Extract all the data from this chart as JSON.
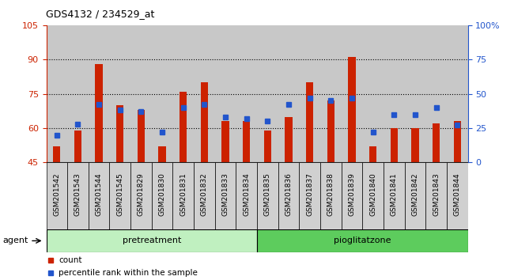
{
  "title": "GDS4132 / 234529_at",
  "samples": [
    "GSM201542",
    "GSM201543",
    "GSM201544",
    "GSM201545",
    "GSM201829",
    "GSM201830",
    "GSM201831",
    "GSM201832",
    "GSM201833",
    "GSM201834",
    "GSM201835",
    "GSM201836",
    "GSM201837",
    "GSM201838",
    "GSM201839",
    "GSM201840",
    "GSM201841",
    "GSM201842",
    "GSM201843",
    "GSM201844"
  ],
  "count_values": [
    52,
    59,
    88,
    70,
    68,
    52,
    76,
    80,
    63,
    63,
    59,
    65,
    80,
    72,
    91,
    52,
    60,
    60,
    62,
    63
  ],
  "percentile_values": [
    20,
    28,
    42,
    38,
    37,
    22,
    40,
    42,
    33,
    32,
    30,
    42,
    47,
    45,
    47,
    22,
    35,
    35,
    40,
    27
  ],
  "groups": [
    {
      "label": "pretreatment",
      "start": 0,
      "end": 10,
      "color": "#c0f0c0"
    },
    {
      "label": "pioglitatzone",
      "start": 10,
      "end": 20,
      "color": "#5dcc5d"
    }
  ],
  "ylim_left": [
    45,
    105
  ],
  "ylim_right": [
    0,
    100
  ],
  "yticks_left": [
    45,
    60,
    75,
    90,
    105
  ],
  "yticks_right": [
    0,
    25,
    50,
    75,
    100
  ],
  "ytick_labels_right": [
    "0",
    "25",
    "50",
    "75",
    "100%"
  ],
  "bar_color": "#cc2200",
  "percentile_color": "#2255cc",
  "bg_color": "#c8c8c8",
  "cell_color": "#d0d0d0",
  "agent_label": "agent",
  "left_axis_color": "#cc2200",
  "right_axis_color": "#2255cc",
  "bar_width": 0.35,
  "gridlines": [
    60,
    75,
    90
  ]
}
